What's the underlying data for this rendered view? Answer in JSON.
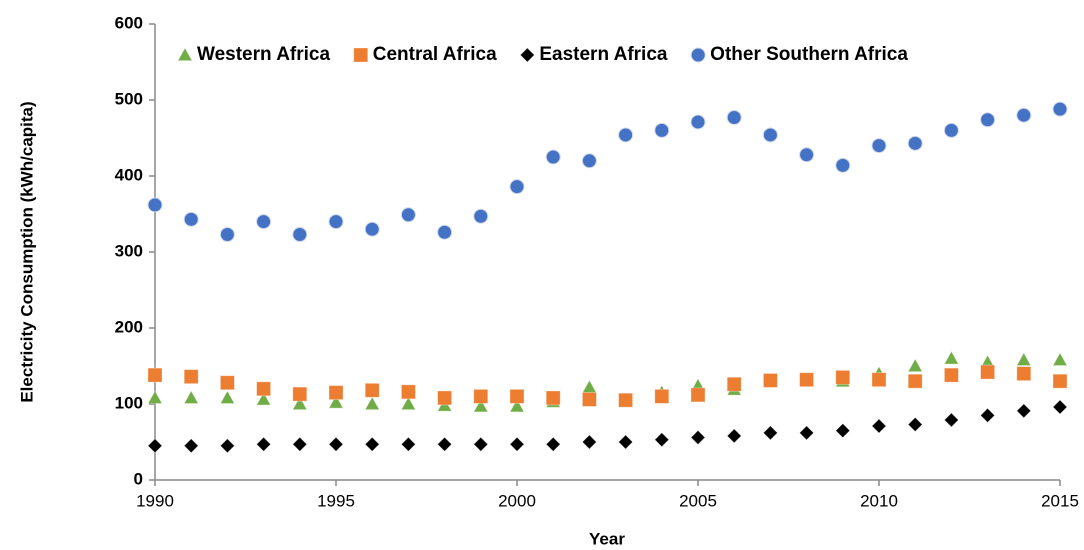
{
  "chart_data": {
    "type": "scatter",
    "x_label": "Year",
    "y_label": "Electricity Consumption  (kWh/capita)",
    "x": [
      1990,
      1991,
      1992,
      1993,
      1994,
      1995,
      1996,
      1997,
      1998,
      1999,
      2000,
      2001,
      2002,
      2003,
      2004,
      2005,
      2006,
      2007,
      2008,
      2009,
      2010,
      2011,
      2012,
      2013,
      2014,
      2015
    ],
    "series": [
      {
        "name": "Western Africa",
        "color": "#70ad47",
        "marker": "triangle",
        "values": [
          108,
          108,
          108,
          106,
          100,
          102,
          100,
          100,
          98,
          97,
          97,
          103,
          122,
          106,
          115,
          124,
          119,
          131,
          131,
          130,
          140,
          150,
          160,
          155,
          158,
          158
        ]
      },
      {
        "name": "Central Africa",
        "color": "#ed7d31",
        "marker": "square",
        "values": [
          138,
          136,
          128,
          120,
          113,
          115,
          118,
          116,
          108,
          110,
          110,
          108,
          106,
          105,
          110,
          112,
          126,
          131,
          132,
          135,
          132,
          130,
          138,
          142,
          140,
          130
        ]
      },
      {
        "name": "Eastern Africa",
        "color": "#000000",
        "marker": "diamond",
        "values": [
          45,
          45,
          45,
          47,
          47,
          47,
          47,
          47,
          47,
          47,
          47,
          47,
          50,
          50,
          53,
          56,
          58,
          62,
          62,
          65,
          71,
          73,
          79,
          85,
          91,
          96
        ]
      },
      {
        "name": "Other Southern Africa",
        "color": "#4472c4",
        "marker": "circle",
        "values": [
          362,
          343,
          323,
          340,
          323,
          340,
          330,
          349,
          326,
          347,
          386,
          425,
          420,
          454,
          460,
          471,
          477,
          454,
          428,
          414,
          440,
          443,
          460,
          474,
          480,
          488
        ]
      }
    ],
    "xlim": [
      1990,
      2015
    ],
    "xticks": [
      1990,
      1995,
      2000,
      2005,
      2010,
      2015
    ],
    "ylim": [
      0,
      600
    ],
    "yticks": [
      0,
      100,
      200,
      300,
      400,
      500,
      600
    ],
    "grid": false,
    "legend": "top"
  }
}
